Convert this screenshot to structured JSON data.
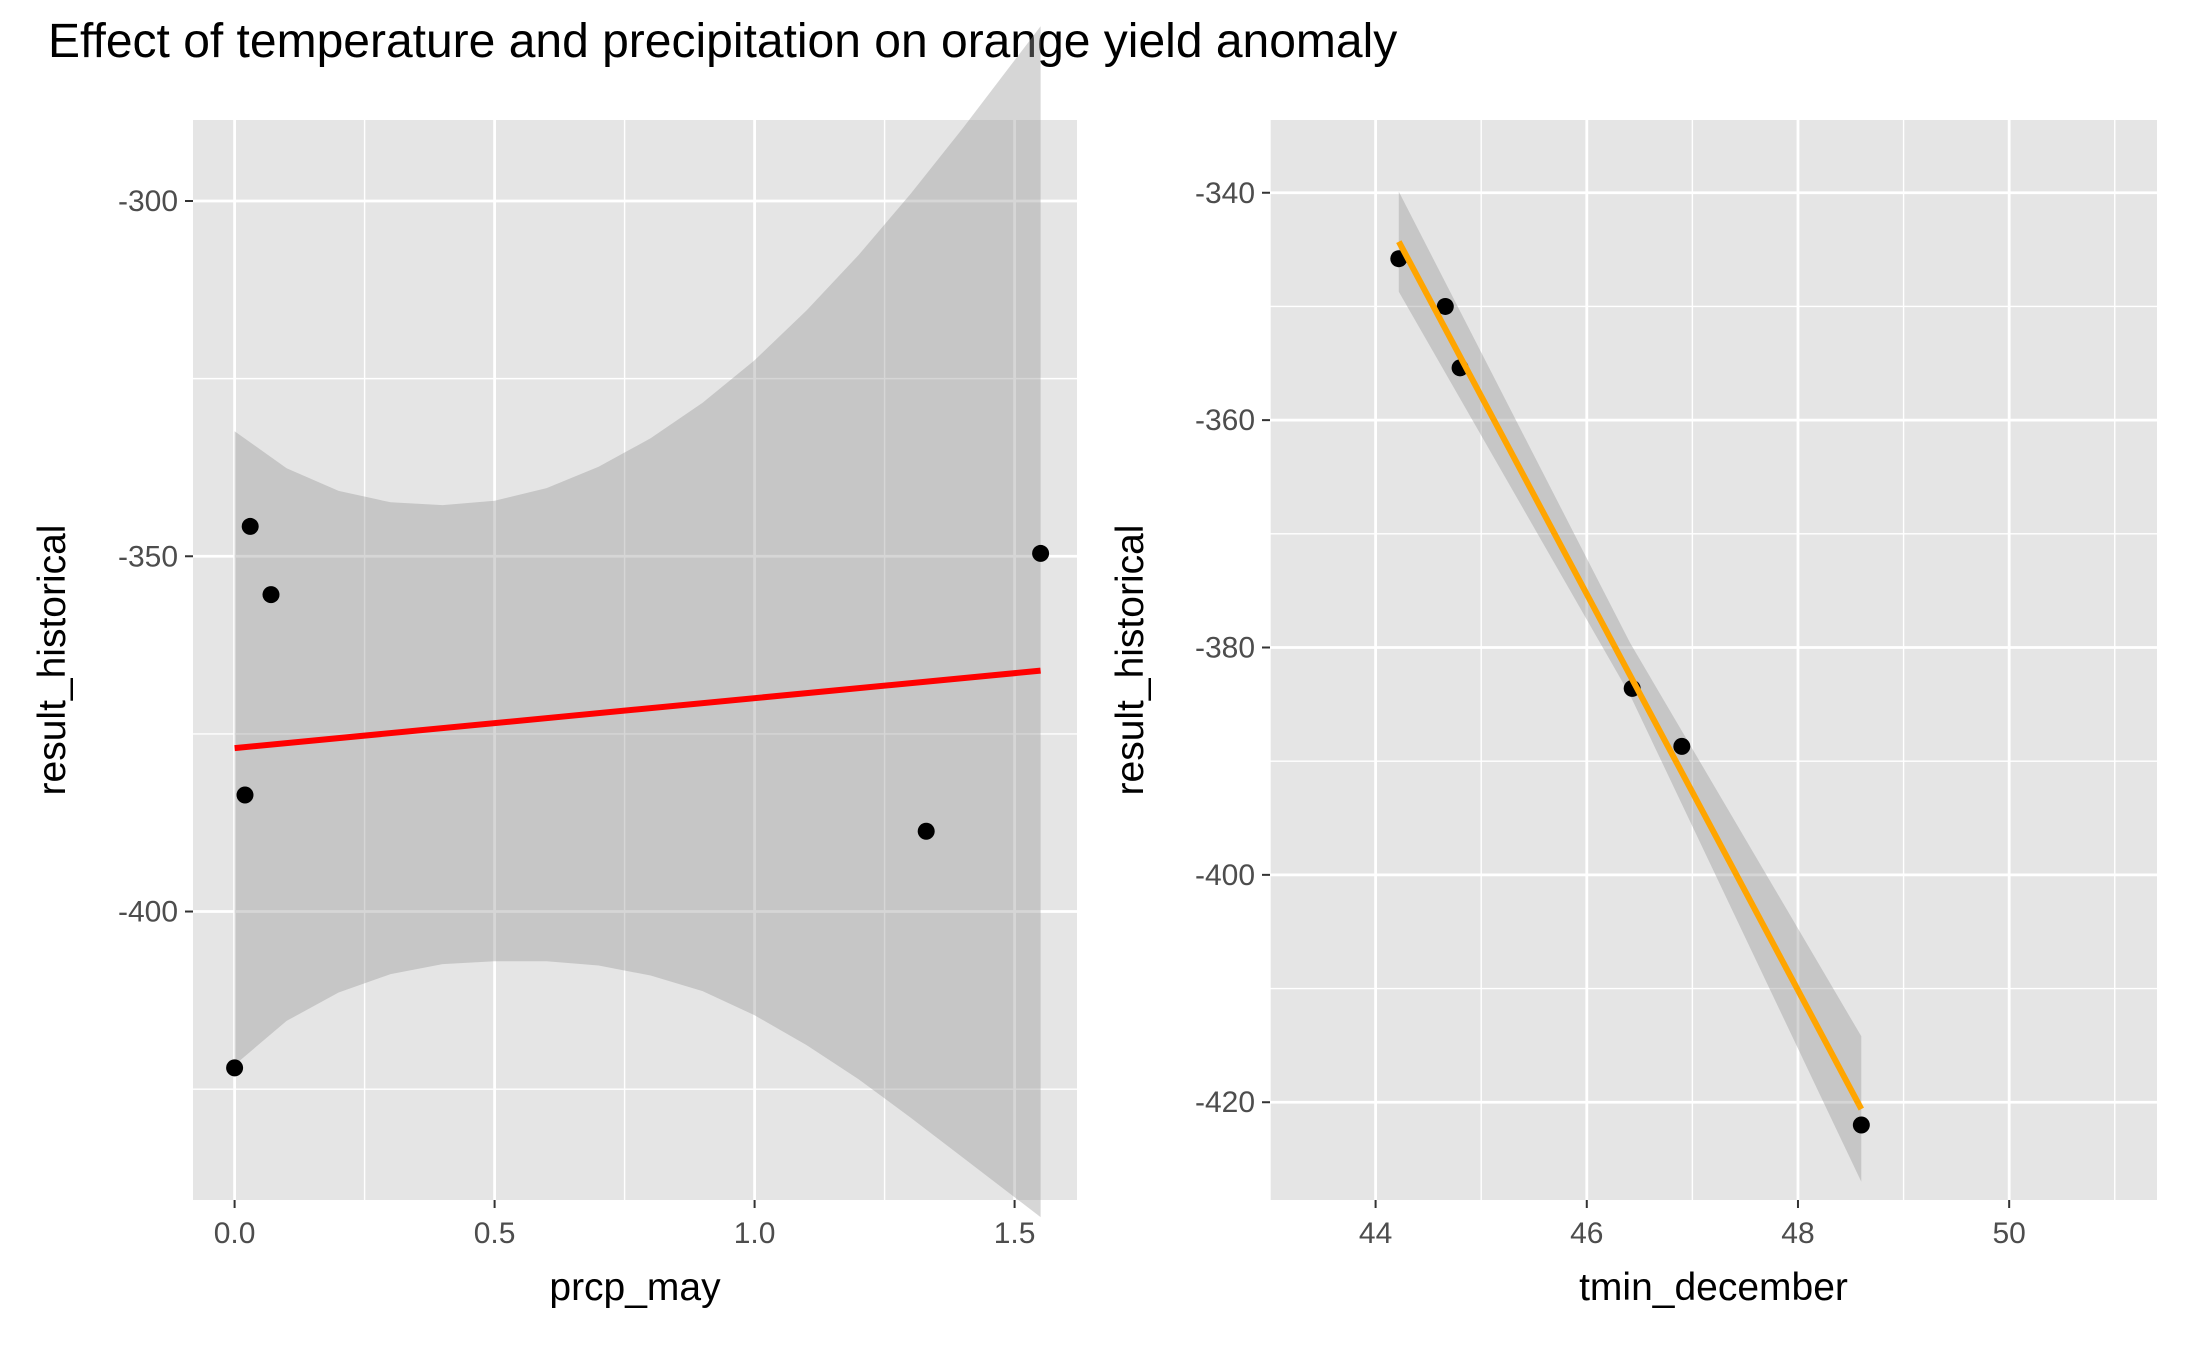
{
  "title": "Effect of temperature and precipitation on orange yield anomaly",
  "colors": {
    "panel_background": "#e5e5e5",
    "grid": "#ffffff",
    "ribbon": "#999999",
    "point": "#000000",
    "fit_left": "#ff0000",
    "fit_right": "#ffa500"
  },
  "chart_data": [
    {
      "type": "scatter",
      "xlabel": "prcp_may",
      "ylabel": "result_historical",
      "x_ticks": [
        "0.0",
        "0.5",
        "1.0",
        "1.5"
      ],
      "x_tick_values": [
        0.0,
        0.5,
        1.0,
        1.5
      ],
      "y_ticks": [
        "-300",
        "-350",
        "-400"
      ],
      "y_tick_values": [
        -300,
        -350,
        -400
      ],
      "xlim": [
        -0.08,
        1.62
      ],
      "ylim": [
        -440.6,
        -288.6
      ],
      "grid": true,
      "points": [
        {
          "x": 0.0,
          "y": -422.0
        },
        {
          "x": 0.02,
          "y": -383.6
        },
        {
          "x": 0.03,
          "y": -345.8
        },
        {
          "x": 0.07,
          "y": -355.4
        },
        {
          "x": 1.33,
          "y": -388.7
        },
        {
          "x": 1.55,
          "y": -349.6
        }
      ],
      "fit": {
        "x": [
          0.0,
          1.55
        ],
        "y": [
          -377.0,
          -366.1
        ],
        "color": "#ff0000"
      },
      "ribbon": {
        "x": [
          0.0,
          0.1,
          0.2,
          0.3,
          0.4,
          0.5,
          0.6,
          0.7,
          0.8,
          0.9,
          1.0,
          1.1,
          1.2,
          1.3,
          1.4,
          1.5,
          1.55
        ],
        "upper": [
          -332.4,
          -337.6,
          -340.8,
          -342.4,
          -342.8,
          -342.2,
          -340.4,
          -337.4,
          -333.4,
          -328.4,
          -322.4,
          -315.4,
          -307.6,
          -299.0,
          -289.8,
          -280.2,
          -275.4
        ],
        "lower": [
          -421.6,
          -415.4,
          -411.4,
          -408.8,
          -407.4,
          -407.0,
          -407.0,
          -407.6,
          -409.0,
          -411.2,
          -414.6,
          -418.8,
          -423.6,
          -429.0,
          -434.6,
          -440.2,
          -443.0
        ]
      }
    },
    {
      "type": "scatter",
      "xlabel": "tmin_december",
      "ylabel": "result_historical",
      "x_ticks": [
        "44",
        "46",
        "48",
        "50"
      ],
      "x_tick_values": [
        44,
        46,
        48,
        50
      ],
      "y_ticks": [
        "-340",
        "-360",
        "-380",
        "-400",
        "-420"
      ],
      "y_tick_values": [
        -340,
        -360,
        -380,
        -400,
        -420
      ],
      "xlim": [
        43.0,
        51.4
      ],
      "ylim": [
        -428.6,
        -333.6
      ],
      "grid": true,
      "points": [
        {
          "x": 44.22,
          "y": -345.8
        },
        {
          "x": 44.66,
          "y": -350.0
        },
        {
          "x": 44.8,
          "y": -355.4
        },
        {
          "x": 46.43,
          "y": -383.6
        },
        {
          "x": 46.9,
          "y": -388.7
        },
        {
          "x": 48.6,
          "y": -422.0
        }
      ],
      "fit": {
        "x": [
          44.22,
          48.6
        ],
        "y": [
          -344.3,
          -420.6
        ],
        "color": "#ffa500"
      },
      "ribbon": {
        "x": [
          44.22,
          46.41,
          48.6
        ],
        "upper": [
          -339.9,
          -379.6,
          -414.2
        ],
        "lower": [
          -348.7,
          -384.2,
          -427.0
        ]
      }
    }
  ]
}
